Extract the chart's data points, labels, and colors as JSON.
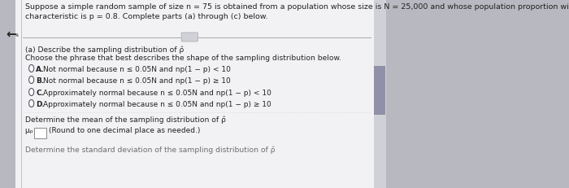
{
  "outer_bg": "#b8b8c0",
  "left_bar_color": "#c8c8d4",
  "panel_bg": "#e8e8ec",
  "content_bg": "#ececf0",
  "scrollbar_color": "#9090a8",
  "divider_color": "#aaaaaa",
  "text_color": "#222222",
  "light_text": "#444444",
  "header_text_line1": "Suppose a simple random sample of size n = 75 is obtained from a population whose size is N = 25,000 and whose population proportion with a specified",
  "header_text_line2": "characteristic is p = 0.8. Complete parts (a) through (c) below.",
  "arrow_symbol": "↩",
  "part_a_label": "(a) Describe the sampling distribution of ρ̂",
  "choose_phrase": "Choose the phrase that best describes the shape of the sampling distribution below.",
  "option_labels": [
    "A.",
    "B.",
    "C.",
    "D."
  ],
  "option_texts": [
    "Not normal because n ≤ 0.05N and np(1 − p) < 10",
    "Not normal because n ≤ 0.05N and np(1 − p) ≥ 10",
    "Approximately normal because n ≤ 0.05N and np(1 − p) < 10",
    "Approximately normal because n ≤ 0.05N and np(1 − p) ≥ 10"
  ],
  "mean_label": "Determine the mean of the sampling distribution of ρ̂",
  "mean_lhs": "μₚ =",
  "mean_hint": "(Round to one decimal place as needed.)",
  "bottom_text": "Determine the standard deviation of the sampling distribution of ρ̂",
  "header_fontsize": 6.8,
  "body_fontsize": 6.6,
  "radio_fontsize": 6.5
}
